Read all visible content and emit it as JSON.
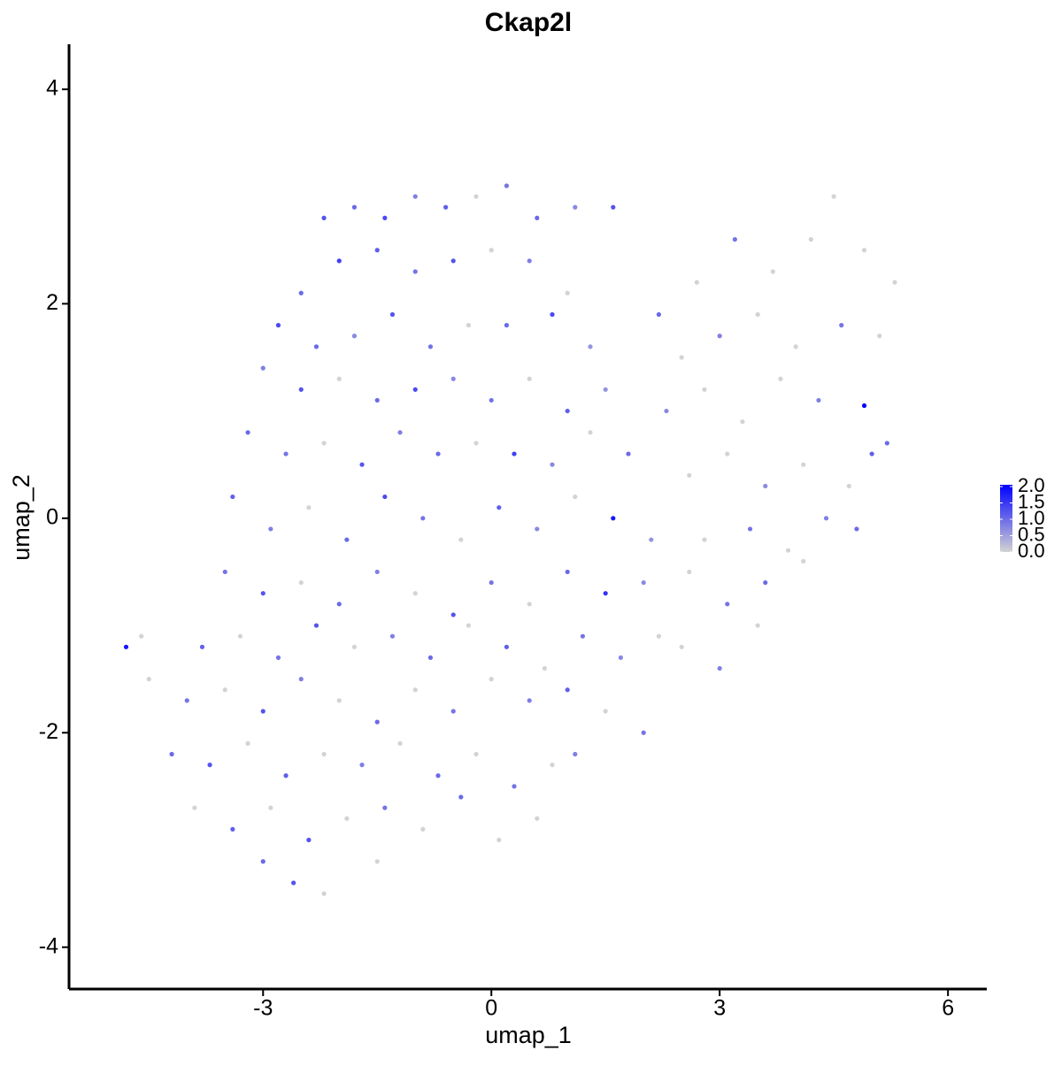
{
  "chart_data": {
    "type": "scatter",
    "title": "Ckap2l",
    "x_label": "umap_1",
    "y_label": "umap_2",
    "xlim": [
      -5.55,
      6.51
    ],
    "ylim": [
      -4.39,
      4.42
    ],
    "xticks": [
      -3,
      0,
      3,
      6
    ],
    "yticks": [
      -4,
      -2,
      0,
      2,
      4
    ],
    "color_low": "#d3d3d3",
    "color_high": "#0000ff",
    "color_lim": [
      0,
      2
    ],
    "color_ticks": [
      {
        "value": 0,
        "label": "0.0"
      },
      {
        "value": 0.5,
        "label": "0.5"
      },
      {
        "value": 1,
        "label": "1.0"
      },
      {
        "value": 1.5,
        "label": "1.5"
      },
      {
        "value": 2,
        "label": "2.0"
      }
    ],
    "x": [
      -2.2,
      -1.8,
      -1.4,
      -1.0,
      -0.6,
      -0.2,
      0.2,
      0.6,
      1.1,
      1.6,
      -2.5,
      -2.0,
      -1.5,
      -1.0,
      -0.5,
      0.0,
      0.5,
      1.0,
      -2.8,
      -2.3,
      -1.8,
      -1.3,
      -0.8,
      -0.3,
      0.2,
      0.8,
      1.3,
      -3.0,
      -2.5,
      -2.0,
      -1.5,
      -1.0,
      -0.5,
      0.0,
      0.5,
      1.0,
      1.5,
      -3.2,
      -2.7,
      -2.2,
      -1.7,
      -1.2,
      -0.7,
      -0.2,
      0.3,
      0.8,
      1.3,
      1.8,
      -3.4,
      -2.9,
      -2.4,
      -1.9,
      -1.4,
      -0.9,
      -0.4,
      0.1,
      0.6,
      1.1,
      1.6,
      2.1,
      -3.5,
      -3.0,
      -2.5,
      -2.0,
      -1.5,
      -1.0,
      -0.5,
      0.0,
      0.5,
      1.0,
      1.5,
      2.0,
      -3.8,
      -3.3,
      -2.8,
      -2.3,
      -1.8,
      -1.3,
      -0.8,
      -0.3,
      0.2,
      0.7,
      1.2,
      1.7,
      2.2,
      -4.0,
      -3.5,
      -3.0,
      -2.5,
      -2.0,
      -1.5,
      -1.0,
      -0.5,
      0.0,
      0.5,
      1.0,
      1.5,
      2.0,
      -4.2,
      -3.7,
      -3.2,
      -2.7,
      -2.2,
      -1.7,
      -1.2,
      -0.7,
      -0.2,
      0.3,
      0.8,
      1.1,
      -3.9,
      -3.4,
      -2.9,
      -2.4,
      -1.9,
      -1.4,
      -0.9,
      -0.4,
      0.1,
      0.6,
      -3.0,
      -2.6,
      -2.2,
      -1.5,
      -4.8,
      -4.6,
      -4.5,
      2.2,
      2.7,
      3.2,
      3.7,
      4.2,
      4.5,
      4.9,
      5.3,
      2.5,
      3.0,
      3.5,
      4.0,
      4.6,
      5.1,
      2.3,
      2.8,
      3.3,
      3.8,
      4.3,
      4.9,
      5.2,
      2.6,
      3.1,
      3.6,
      4.1,
      4.7,
      5.0,
      3.4,
      3.9,
      4.4,
      4.8,
      2.6,
      3.1,
      3.6,
      4.1,
      2.5,
      3.0,
      3.5,
      2.8
    ],
    "y": [
      2.8,
      2.9,
      2.8,
      3.0,
      2.9,
      3.0,
      3.1,
      2.8,
      2.9,
      2.9,
      2.1,
      2.4,
      2.5,
      2.3,
      2.4,
      2.5,
      2.4,
      2.1,
      1.8,
      1.6,
      1.7,
      1.9,
      1.6,
      1.8,
      1.8,
      1.9,
      1.6,
      1.4,
      1.2,
      1.3,
      1.1,
      1.2,
      1.3,
      1.1,
      1.3,
      1.0,
      1.2,
      0.8,
      0.6,
      0.7,
      0.5,
      0.8,
      0.6,
      0.7,
      0.6,
      0.5,
      0.8,
      0.6,
      0.2,
      -0.1,
      0.1,
      -0.2,
      0.2,
      0.0,
      -0.2,
      0.1,
      -0.1,
      0.2,
      0.0,
      -0.2,
      -0.5,
      -0.7,
      -0.6,
      -0.8,
      -0.5,
      -0.7,
      -0.9,
      -0.6,
      -0.8,
      -0.5,
      -0.7,
      -0.6,
      -1.2,
      -1.1,
      -1.3,
      -1.0,
      -1.2,
      -1.1,
      -1.3,
      -1.0,
      -1.2,
      -1.4,
      -1.1,
      -1.3,
      -1.1,
      -1.7,
      -1.6,
      -1.8,
      -1.5,
      -1.7,
      -1.9,
      -1.6,
      -1.8,
      -1.5,
      -1.7,
      -1.6,
      -1.8,
      -2.0,
      -2.2,
      -2.3,
      -2.1,
      -2.4,
      -2.2,
      -2.3,
      -2.1,
      -2.4,
      -2.2,
      -2.5,
      -2.3,
      -2.2,
      -2.7,
      -2.9,
      -2.7,
      -3.0,
      -2.8,
      -2.7,
      -2.9,
      -2.6,
      -3.0,
      -2.8,
      -3.2,
      -3.4,
      -3.5,
      -3.2,
      -1.2,
      -1.1,
      -1.5,
      1.9,
      2.2,
      2.6,
      2.3,
      2.6,
      3.0,
      2.5,
      2.2,
      1.5,
      1.7,
      1.9,
      1.6,
      1.8,
      1.7,
      1.0,
      1.2,
      0.9,
      1.3,
      1.1,
      1.05,
      0.7,
      0.4,
      0.6,
      0.3,
      0.5,
      0.3,
      0.6,
      -0.1,
      -0.3,
      0.0,
      -0.1,
      -0.5,
      -0.8,
      -0.6,
      -0.4,
      -1.2,
      -1.4,
      -1.0,
      -0.2
    ],
    "expression": [
      1.2,
      1.0,
      1.3,
      0.8,
      1.1,
      0,
      0.9,
      1.0,
      0.7,
      1.2,
      1.0,
      1.4,
      1.1,
      0.9,
      1.2,
      0,
      0.8,
      0,
      1.3,
      1.0,
      0.7,
      1.2,
      0.9,
      0,
      1.0,
      1.3,
      0.6,
      0.8,
      1.2,
      0,
      1.0,
      1.3,
      0.7,
      0.9,
      0,
      1.1,
      0.6,
      1.0,
      0.9,
      0,
      1.2,
      0.8,
      1.0,
      0,
      1.4,
      0.7,
      0,
      1.0,
      1.1,
      0.8,
      0,
      1.0,
      1.3,
      0.9,
      0,
      1.1,
      0.7,
      0,
      1.8,
      0.6,
      0.9,
      1.2,
      0,
      1.0,
      0.8,
      0,
      1.2,
      0.9,
      0,
      1.0,
      1.5,
      0.7,
      1.1,
      0,
      0.9,
      1.2,
      0,
      0.8,
      1.0,
      0,
      1.1,
      0,
      0.9,
      0.7,
      0,
      0.9,
      0,
      1.2,
      0.8,
      0,
      1.0,
      0,
      0.9,
      0,
      0.8,
      1.1,
      0,
      0.9,
      1.0,
      1.2,
      0,
      1.1,
      0,
      0.8,
      0,
      1.0,
      0,
      0.9,
      0,
      0.8,
      0,
      1.1,
      0,
      1.2,
      0,
      0.9,
      0,
      1.0,
      0,
      0,
      1.0,
      1.2,
      0,
      0,
      1.8,
      0,
      0,
      1.0,
      0,
      0.9,
      0,
      0,
      0,
      0,
      0,
      0,
      0.8,
      0,
      0,
      0.9,
      0,
      0.7,
      0,
      0,
      0,
      0.8,
      2.0,
      1.0,
      0,
      0,
      0.7,
      0,
      0,
      1.1,
      0.9,
      0,
      0.8,
      1.0,
      0,
      0.9,
      1.0,
      0,
      0,
      0.8,
      0,
      0
    ]
  }
}
